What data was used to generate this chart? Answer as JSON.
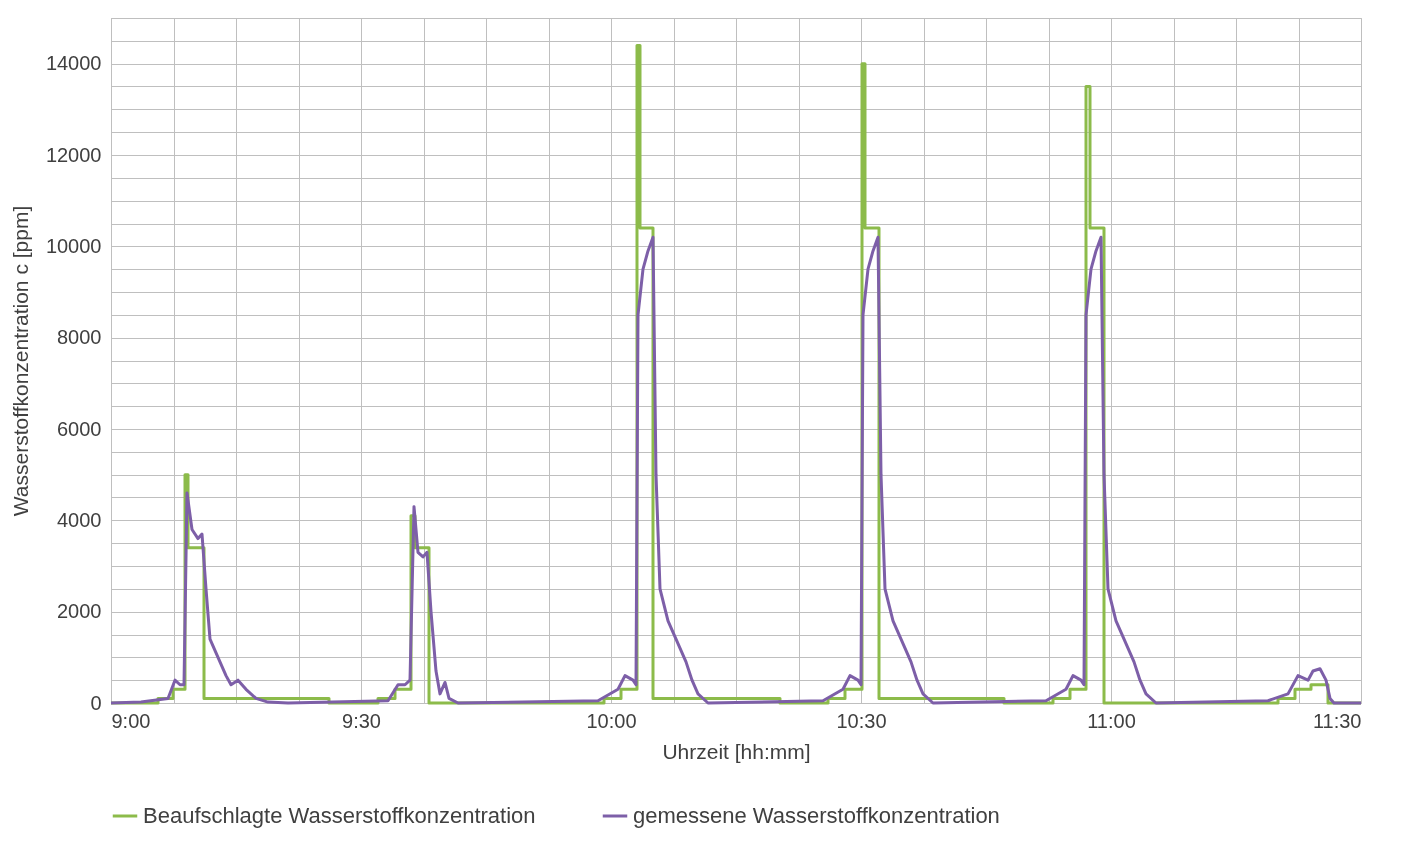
{
  "chart_data": {
    "type": "line",
    "xlabel": "Uhrzeit [hh:mm]",
    "ylabel": "Wasserstoffkonzentration  c [ppm]",
    "grid": true,
    "legend": "bottom",
    "xlim": [
      9,
      11.5
    ],
    "xticks": [
      {
        "value": 9,
        "label": "9:00"
      },
      {
        "value": 9.125,
        "label": null
      },
      {
        "value": 9.25,
        "label": null
      },
      {
        "value": 9.375,
        "label": null
      },
      {
        "value": 9.5,
        "label": "9:30"
      },
      {
        "value": 9.625,
        "label": null
      },
      {
        "value": 9.75,
        "label": null
      },
      {
        "value": 9.875,
        "label": null
      },
      {
        "value": 10,
        "label": "10:00"
      },
      {
        "value": 10.125,
        "label": null
      },
      {
        "value": 10.25,
        "label": null
      },
      {
        "value": 10.375,
        "label": null
      },
      {
        "value": 10.5,
        "label": "10:30"
      },
      {
        "value": 10.625,
        "label": null
      },
      {
        "value": 10.75,
        "label": null
      },
      {
        "value": 10.875,
        "label": null
      },
      {
        "value": 11,
        "label": "11:00"
      },
      {
        "value": 11.125,
        "label": null
      },
      {
        "value": 11.25,
        "label": null
      },
      {
        "value": 11.375,
        "label": null
      },
      {
        "value": 11.5,
        "label": "11:30"
      }
    ],
    "ylim": [
      0,
      15000
    ],
    "yticks": [
      0,
      {
        "value": 500,
        "label": null
      },
      {
        "value": 1000,
        "label": null
      },
      {
        "value": 1500,
        "label": null
      },
      2000,
      {
        "value": 2500,
        "label": null
      },
      {
        "value": 3000,
        "label": null
      },
      {
        "value": 3500,
        "label": null
      },
      4000,
      {
        "value": 4500,
        "label": null
      },
      {
        "value": 5000,
        "label": null
      },
      {
        "value": 5500,
        "label": null
      },
      6000,
      {
        "value": 6500,
        "label": null
      },
      {
        "value": 7000,
        "label": null
      },
      {
        "value": 7500,
        "label": null
      },
      8000,
      {
        "value": 8500,
        "label": null
      },
      {
        "value": 9000,
        "label": null
      },
      {
        "value": 9500,
        "label": null
      },
      10000,
      {
        "value": 10500,
        "label": null
      },
      {
        "value": 11000,
        "label": null
      },
      {
        "value": 11500,
        "label": null
      },
      12000,
      {
        "value": 12500,
        "label": null
      },
      {
        "value": 13000,
        "label": null
      },
      {
        "value": 13500,
        "label": null
      },
      14000,
      {
        "value": 14500,
        "label": null
      },
      {
        "value": 15000,
        "label": null
      }
    ],
    "series": [
      {
        "name": "Beaufschlagte Wasserstoffkonzentration",
        "type": "step",
        "color": "#8cbb4a",
        "x": [
          9.0,
          9.094,
          9.124,
          9.148,
          9.154,
          9.186,
          9.436,
          9.534,
          9.568,
          9.6,
          9.608,
          9.636,
          9.986,
          10.02,
          10.052,
          10.058,
          10.084,
          10.338,
          10.434,
          10.468,
          10.502,
          10.508,
          10.536,
          10.786,
          10.884,
          10.918,
          10.95,
          10.958,
          10.986,
          11.334,
          11.368,
          11.4,
          11.434,
          11.5
        ],
        "values": [
          0,
          100,
          300,
          5000,
          3400,
          100,
          0,
          100,
          300,
          4100,
          3400,
          0,
          100,
          300,
          14400,
          10400,
          100,
          0,
          100,
          300,
          14000,
          10400,
          100,
          0,
          100,
          300,
          13500,
          10400,
          0,
          100,
          300,
          400,
          0,
          0
        ]
      },
      {
        "name": "gemessene Wasserstoffkonzentration",
        "type": "line",
        "color": "#7d5fa8",
        "x": [
          9.0,
          9.06,
          9.114,
          9.128,
          9.138,
          9.146,
          9.152,
          9.162,
          9.174,
          9.182,
          9.19,
          9.198,
          9.214,
          9.23,
          9.24,
          9.254,
          9.27,
          9.29,
          9.314,
          9.354,
          9.554,
          9.574,
          9.588,
          9.598,
          9.606,
          9.614,
          9.624,
          9.632,
          9.64,
          9.65,
          9.658,
          9.668,
          9.676,
          9.694,
          9.974,
          10.014,
          10.028,
          10.044,
          10.05,
          10.054,
          10.064,
          10.074,
          10.084,
          10.09,
          10.098,
          10.114,
          10.134,
          10.15,
          10.162,
          10.174,
          10.194,
          10.424,
          10.464,
          10.478,
          10.494,
          10.5,
          10.504,
          10.514,
          10.524,
          10.534,
          10.54,
          10.548,
          10.564,
          10.584,
          10.6,
          10.612,
          10.624,
          10.644,
          10.87,
          10.91,
          10.924,
          10.94,
          10.946,
          10.95,
          10.96,
          10.97,
          10.98,
          10.986,
          10.994,
          11.01,
          11.03,
          11.046,
          11.058,
          11.07,
          11.09,
          11.314,
          11.354,
          11.374,
          11.394,
          11.404,
          11.418,
          11.43,
          11.438,
          11.446,
          11.5
        ],
        "values": [
          0,
          20,
          100,
          500,
          400,
          400,
          4600,
          3800,
          3600,
          3700,
          2500,
          1400,
          1000,
          600,
          400,
          500,
          300,
          100,
          20,
          0,
          50,
          400,
          400,
          500,
          4300,
          3300,
          3200,
          3300,
          2000,
          700,
          200,
          450,
          100,
          0,
          50,
          300,
          600,
          500,
          400,
          8500,
          9500,
          9900,
          10200,
          5000,
          2500,
          1800,
          1300,
          900,
          500,
          200,
          0,
          50,
          300,
          600,
          500,
          400,
          8500,
          9500,
          9900,
          10200,
          5000,
          2500,
          1800,
          1300,
          900,
          500,
          200,
          0,
          50,
          300,
          600,
          500,
          400,
          8500,
          9500,
          9900,
          10200,
          5000,
          2500,
          1800,
          1300,
          900,
          500,
          200,
          0,
          50,
          200,
          600,
          500,
          700,
          750,
          500,
          100,
          0,
          0
        ]
      }
    ]
  }
}
